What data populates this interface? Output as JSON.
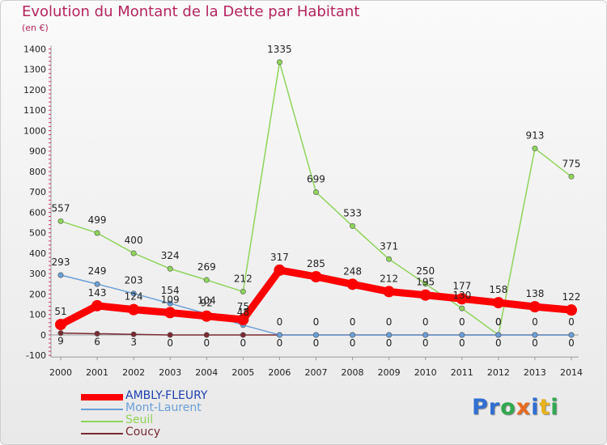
{
  "title": "Evolution du Montant de la Dette par Habitant",
  "subtitle": "(en €)",
  "logo": "Proxiti",
  "colors": {
    "title": "#b5245f",
    "logo_letters": [
      "#2f6fd1",
      "#2f6fd1",
      "#2fa84f",
      "#e96b1f",
      "#2f6fd1",
      "#e6b21c",
      "#2fa84f"
    ]
  },
  "chart_data": {
    "type": "line",
    "title": "Evolution du Montant de la Dette par Habitant",
    "ylabel": "(en €)",
    "ylim": [
      -100,
      1400
    ],
    "yticks": [
      -100,
      0,
      100,
      200,
      300,
      400,
      500,
      600,
      700,
      800,
      900,
      1000,
      1100,
      1200,
      1300,
      1400
    ],
    "categories": [
      "2000",
      "2001",
      "2002",
      "2003",
      "2004",
      "2005",
      "2006",
      "2007",
      "2008",
      "2009",
      "2010",
      "2011",
      "2012",
      "2013",
      "2014"
    ],
    "legend_position": "bottom-left",
    "grid": false,
    "series": [
      {
        "name": "AMBLY-FLEURY",
        "color": "#ff0000",
        "width": 9,
        "marker": 7,
        "values": [
          51,
          143,
          124,
          109,
          92,
          75,
          317,
          285,
          248,
          212,
          195,
          177,
          158,
          138,
          122
        ],
        "labels": [
          "51",
          "143",
          "124",
          "109",
          "92",
          "75",
          "317",
          "285",
          "248",
          "212",
          "195",
          "177",
          "158",
          "138",
          "122"
        ]
      },
      {
        "name": "Mont-Laurent",
        "color": "#6a9fd8",
        "width": 1.5,
        "marker": 3.2,
        "values": [
          293,
          249,
          203,
          154,
          104,
          48,
          0,
          0,
          0,
          0,
          0,
          0,
          0,
          0,
          0
        ],
        "labels": [
          "293",
          "249",
          "203",
          "154",
          "104",
          "48",
          "0",
          "0",
          "0",
          "0",
          "0",
          "0",
          "0",
          "0",
          "0"
        ]
      },
      {
        "name": "Seuil",
        "color": "#8fd45a",
        "width": 1.5,
        "marker": 3.2,
        "values": [
          557,
          499,
          400,
          324,
          269,
          212,
          1335,
          699,
          533,
          371,
          250,
          130,
          0,
          913,
          775
        ],
        "labels": [
          "557",
          "499",
          "400",
          "324",
          "269",
          "212",
          "1335",
          "699",
          "533",
          "371",
          "250",
          "130",
          "0",
          "913",
          "775"
        ]
      },
      {
        "name": "Coucy",
        "color": "#7a2a33",
        "width": 1.5,
        "marker": 3.2,
        "values": [
          9,
          6,
          3,
          0,
          0,
          0,
          0,
          0,
          0,
          0,
          0,
          0,
          0,
          0,
          0
        ],
        "labels": [
          "9",
          "6",
          "3",
          "0",
          "0",
          "0",
          "0",
          "0",
          "0",
          "0",
          "0",
          "0",
          "0",
          "0",
          "0"
        ]
      }
    ]
  }
}
